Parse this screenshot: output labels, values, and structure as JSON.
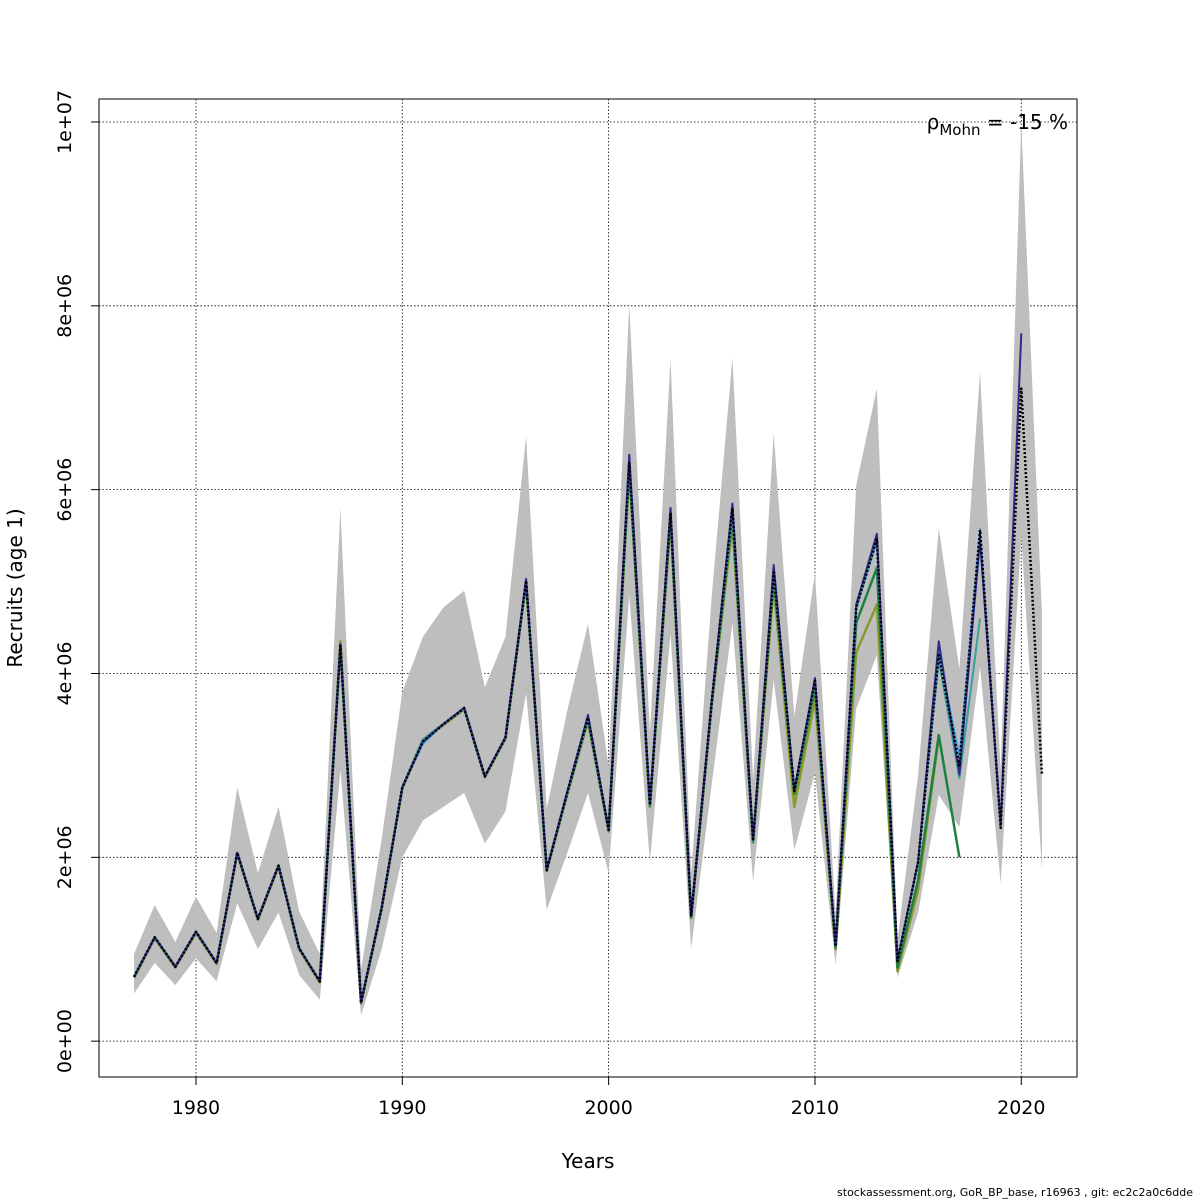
{
  "chart_data": {
    "type": "line",
    "xlabel": "Years",
    "ylabel": "Recruits (age 1)",
    "xlim": [
      1975.3,
      2022.7
    ],
    "ylim": [
      -390000,
      10250000
    ],
    "x_ticks": [
      1980,
      1990,
      2000,
      2010,
      2020
    ],
    "x_tick_labels": [
      "1980",
      "1990",
      "2000",
      "2010",
      "2020"
    ],
    "y_ticks": [
      0,
      2000000,
      4000000,
      6000000,
      8000000,
      10000000
    ],
    "y_tick_labels": [
      "0e+00",
      "2e+06",
      "4e+06",
      "6e+06",
      "8e+06",
      "1e+07"
    ],
    "grid": true,
    "annotation": {
      "rho": "ρ",
      "sub": "Mohn",
      "value": " = -15 %"
    },
    "colors": {
      "band": "#bebebe",
      "base": "#000000",
      "peel1": "#2e2a8c",
      "peel2": "#3a9ad9",
      "peel3": "#3aa198",
      "peel4": "#1e8040",
      "peel5": "#8a9a2a"
    },
    "band": {
      "years": [
        1977,
        1978,
        1979,
        1980,
        1981,
        1982,
        1983,
        1984,
        1985,
        1986,
        1987,
        1988,
        1989,
        1990,
        1991,
        1992,
        1993,
        1994,
        1995,
        1996,
        1997,
        1998,
        1999,
        2000,
        2001,
        2002,
        2003,
        2004,
        2005,
        2006,
        2007,
        2008,
        2009,
        2010,
        2011,
        2012,
        2013,
        2014,
        2015,
        2016,
        2017,
        2018,
        2019,
        2020,
        2021
      ],
      "lower": [
        520000,
        850000,
        610000,
        900000,
        650000,
        1500000,
        1000000,
        1400000,
        720000,
        450000,
        2950000,
        280000,
        1000000,
        2000000,
        2400000,
        2550000,
        2700000,
        2150000,
        2500000,
        3780000,
        1430000,
        2050000,
        2700000,
        1830000,
        4850000,
        1950000,
        4430000,
        1010000,
        2800000,
        4550000,
        1740000,
        3930000,
        2080000,
        2920000,
        830000,
        3620000,
        4200000,
        690000,
        1400000,
        2680000,
        2330000,
        4070000,
        1720000,
        5500000,
        1860000
      ],
      "upper": [
        950000,
        1480000,
        1080000,
        1570000,
        1180000,
        2760000,
        1830000,
        2550000,
        1410000,
        950000,
        5800000,
        780000,
        2200000,
        3800000,
        4400000,
        4720000,
        4900000,
        3850000,
        4400000,
        6580000,
        2530000,
        3600000,
        4540000,
        2990000,
        8020000,
        3350000,
        7420000,
        1830000,
        4850000,
        7430000,
        2850000,
        6610000,
        3530000,
        5090000,
        1380000,
        6050000,
        7100000,
        1100000,
        2900000,
        5580000,
        4050000,
        7280000,
        2950000,
        9980000,
        4650000
      ]
    },
    "series": [
      {
        "key": "base",
        "years": [
          1977,
          1978,
          1979,
          1980,
          1981,
          1982,
          1983,
          1984,
          1985,
          1986,
          1987,
          1988,
          1989,
          1990,
          1991,
          1992,
          1993,
          1994,
          1995,
          1996,
          1997,
          1998,
          1999,
          2000,
          2001,
          2002,
          2003,
          2004,
          2005,
          2006,
          2007,
          2008,
          2009,
          2010,
          2011,
          2012,
          2013,
          2014,
          2015,
          2016,
          2017,
          2018,
          2019,
          2020,
          2021
        ],
        "values": [
          700000,
          1130000,
          810000,
          1190000,
          850000,
          2050000,
          1330000,
          1910000,
          1010000,
          650000,
          4300000,
          420000,
          1450000,
          2760000,
          3260000,
          3450000,
          3620000,
          2880000,
          3300000,
          5010000,
          1860000,
          2710000,
          3520000,
          2300000,
          6290000,
          2570000,
          5750000,
          1360000,
          3700000,
          5800000,
          2180000,
          5100000,
          2720000,
          3920000,
          1030000,
          4720000,
          5460000,
          870000,
          1950000,
          4200000,
          3000000,
          5560000,
          2320000,
          7100000,
          2900000
        ],
        "dashed": true,
        "width": 2.5
      },
      {
        "key": "peel1",
        "years": [
          1977,
          1978,
          1979,
          1980,
          1981,
          1982,
          1983,
          1984,
          1985,
          1986,
          1987,
          1988,
          1989,
          1990,
          1991,
          1992,
          1993,
          1994,
          1995,
          1996,
          1997,
          1998,
          1999,
          2000,
          2001,
          2002,
          2003,
          2004,
          2005,
          2006,
          2007,
          2008,
          2009,
          2010,
          2011,
          2012,
          2013,
          2014,
          2015,
          2016,
          2017,
          2018,
          2019,
          2020
        ],
        "values": [
          700000,
          1130000,
          810000,
          1190000,
          850000,
          2050000,
          1330000,
          1910000,
          1010000,
          650000,
          4320000,
          420000,
          1450000,
          2760000,
          3260000,
          3450000,
          3630000,
          2880000,
          3310000,
          5030000,
          1870000,
          2720000,
          3550000,
          2310000,
          6380000,
          2580000,
          5800000,
          1360000,
          3720000,
          5850000,
          2190000,
          5180000,
          2730000,
          3950000,
          1040000,
          4750000,
          5520000,
          880000,
          1960000,
          4350000,
          2900000,
          5450000,
          2350000,
          7700000
        ],
        "dashed": false,
        "width": 2
      },
      {
        "key": "peel2",
        "years": [
          1977,
          1978,
          1979,
          1980,
          1981,
          1982,
          1983,
          1984,
          1985,
          1986,
          1987,
          1988,
          1989,
          1990,
          1991,
          1992,
          1993,
          1994,
          1995,
          1996,
          1997,
          1998,
          1999,
          2000,
          2001,
          2002,
          2003,
          2004,
          2005,
          2006,
          2007,
          2008,
          2009,
          2010,
          2011,
          2012,
          2013,
          2014,
          2015,
          2016,
          2017,
          2018,
          2019
        ],
        "values": [
          700000,
          1130000,
          810000,
          1190000,
          850000,
          2050000,
          1330000,
          1910000,
          1010000,
          650000,
          4310000,
          420000,
          1450000,
          2760000,
          3230000,
          3450000,
          3620000,
          2880000,
          3300000,
          5020000,
          1860000,
          2710000,
          3530000,
          2300000,
          6350000,
          2570000,
          5780000,
          1360000,
          3710000,
          5830000,
          2180000,
          5150000,
          2720000,
          3930000,
          1030000,
          4730000,
          5490000,
          870000,
          1950000,
          4250000,
          3100000,
          5580000,
          2400000
        ],
        "dashed": false,
        "width": 1.5
      },
      {
        "key": "peel3",
        "years": [
          1977,
          1978,
          1979,
          1980,
          1981,
          1982,
          1983,
          1984,
          1985,
          1986,
          1987,
          1988,
          1989,
          1990,
          1991,
          1992,
          1993,
          1994,
          1995,
          1996,
          1997,
          1998,
          1999,
          2000,
          2001,
          2002,
          2003,
          2004,
          2005,
          2006,
          2007,
          2008,
          2009,
          2010,
          2011,
          2012,
          2013,
          2014,
          2015,
          2016,
          2017,
          2018
        ],
        "values": [
          700000,
          1130000,
          810000,
          1190000,
          850000,
          2050000,
          1330000,
          1910000,
          1010000,
          650000,
          4300000,
          420000,
          1450000,
          2760000,
          3280000,
          3450000,
          3620000,
          2880000,
          3300000,
          5000000,
          1860000,
          2710000,
          3510000,
          2300000,
          6280000,
          2570000,
          5720000,
          1360000,
          3690000,
          5750000,
          2170000,
          5120000,
          2710000,
          3900000,
          1030000,
          4700000,
          5450000,
          870000,
          1940000,
          4150000,
          2860000,
          4600000
        ],
        "dashed": false,
        "width": 2
      },
      {
        "key": "peel4",
        "years": [
          1977,
          1978,
          1979,
          1980,
          1981,
          1982,
          1983,
          1984,
          1985,
          1986,
          1987,
          1988,
          1989,
          1990,
          1991,
          1992,
          1993,
          1994,
          1995,
          1996,
          1997,
          1998,
          1999,
          2000,
          2001,
          2002,
          2003,
          2004,
          2005,
          2006,
          2007,
          2008,
          2009,
          2010,
          2011,
          2012,
          2013,
          2014,
          2015,
          2016,
          2017
        ],
        "values": [
          700000,
          1130000,
          810000,
          1190000,
          850000,
          2050000,
          1330000,
          1910000,
          1010000,
          650000,
          4300000,
          420000,
          1450000,
          2760000,
          3280000,
          3450000,
          3620000,
          2880000,
          3300000,
          5000000,
          1860000,
          2700000,
          3500000,
          2290000,
          6240000,
          2560000,
          5700000,
          1350000,
          3680000,
          5700000,
          2170000,
          5050000,
          2690000,
          3850000,
          1020000,
          4550000,
          5150000,
          800000,
          1750000,
          3330000,
          2000000
        ],
        "dashed": false,
        "width": 2.5
      },
      {
        "key": "peel5",
        "years": [
          1977,
          1978,
          1979,
          1980,
          1981,
          1982,
          1983,
          1984,
          1985,
          1986,
          1987,
          1988,
          1989,
          1990,
          1991,
          1992,
          1993,
          1994,
          1995,
          1996,
          1997,
          1998,
          1999,
          2000,
          2001,
          2002,
          2003,
          2004,
          2005,
          2006,
          2007,
          2008,
          2009,
          2010,
          2011,
          2012,
          2013,
          2014,
          2015,
          2016
        ],
        "values": [
          690000,
          1120000,
          800000,
          1180000,
          840000,
          2040000,
          1320000,
          1900000,
          1000000,
          640000,
          4350000,
          410000,
          1440000,
          2750000,
          3270000,
          3440000,
          3610000,
          2870000,
          3290000,
          4980000,
          1850000,
          2690000,
          3480000,
          2280000,
          6200000,
          2550000,
          5650000,
          1340000,
          3660000,
          5620000,
          2160000,
          4950000,
          2550000,
          3720000,
          1000000,
          4230000,
          4750000,
          760000,
          1650000,
          3300000
        ],
        "dashed": false,
        "width": 2.5
      }
    ],
    "footer": "stockassessment.org, GoR_BP_base, r16963 , git: ec2c2a0c6dde"
  }
}
